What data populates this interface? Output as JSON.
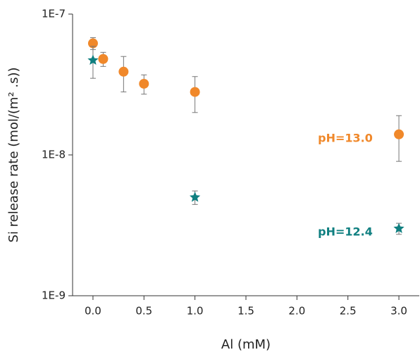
{
  "chart_data": {
    "type": "scatter",
    "x_label": "Al (mM)",
    "y_label": "Si release rate (mol/(m² .s))",
    "log_y": true,
    "xlim": [
      -0.2,
      3.2
    ],
    "xticks": [
      {
        "value": 0,
        "label": "0.0"
      },
      {
        "value": 0.5,
        "label": "0.5"
      },
      {
        "value": 1,
        "label": "1.0"
      },
      {
        "value": 1.5,
        "label": "1.5"
      },
      {
        "value": 2,
        "label": "2.0"
      },
      {
        "value": 2.5,
        "label": "2.5"
      },
      {
        "value": 3,
        "label": "3.0"
      }
    ],
    "ylim": [
      1e-09,
      1e-07
    ],
    "yticks": [
      {
        "value": 1e-09,
        "label": "1E-9"
      },
      {
        "value": 1e-08,
        "label": "1E-8"
      },
      {
        "value": 1e-07,
        "label": "1E-7"
      }
    ],
    "series": [
      {
        "name": "pH=13.0",
        "color": "#f0882a",
        "marker": "circle",
        "x": [
          0,
          0.1,
          0.3,
          0.5,
          1,
          3
        ],
        "values": [
          6.2e-08,
          4.8e-08,
          3.9e-08,
          3.2e-08,
          2.8e-08,
          1.4e-08
        ],
        "errors": [
          6e-09,
          5.5e-09,
          1.1e-08,
          5e-09,
          8e-09,
          5e-09
        ]
      },
      {
        "name": "pH=12.4",
        "color": "#0f7f80",
        "marker": "star",
        "x": [
          0,
          1,
          3
        ],
        "values": [
          4.7e-08,
          5e-09,
          3e-09
        ],
        "errors": [
          1.2e-08,
          5.5e-10,
          2.7e-10
        ]
      }
    ]
  }
}
